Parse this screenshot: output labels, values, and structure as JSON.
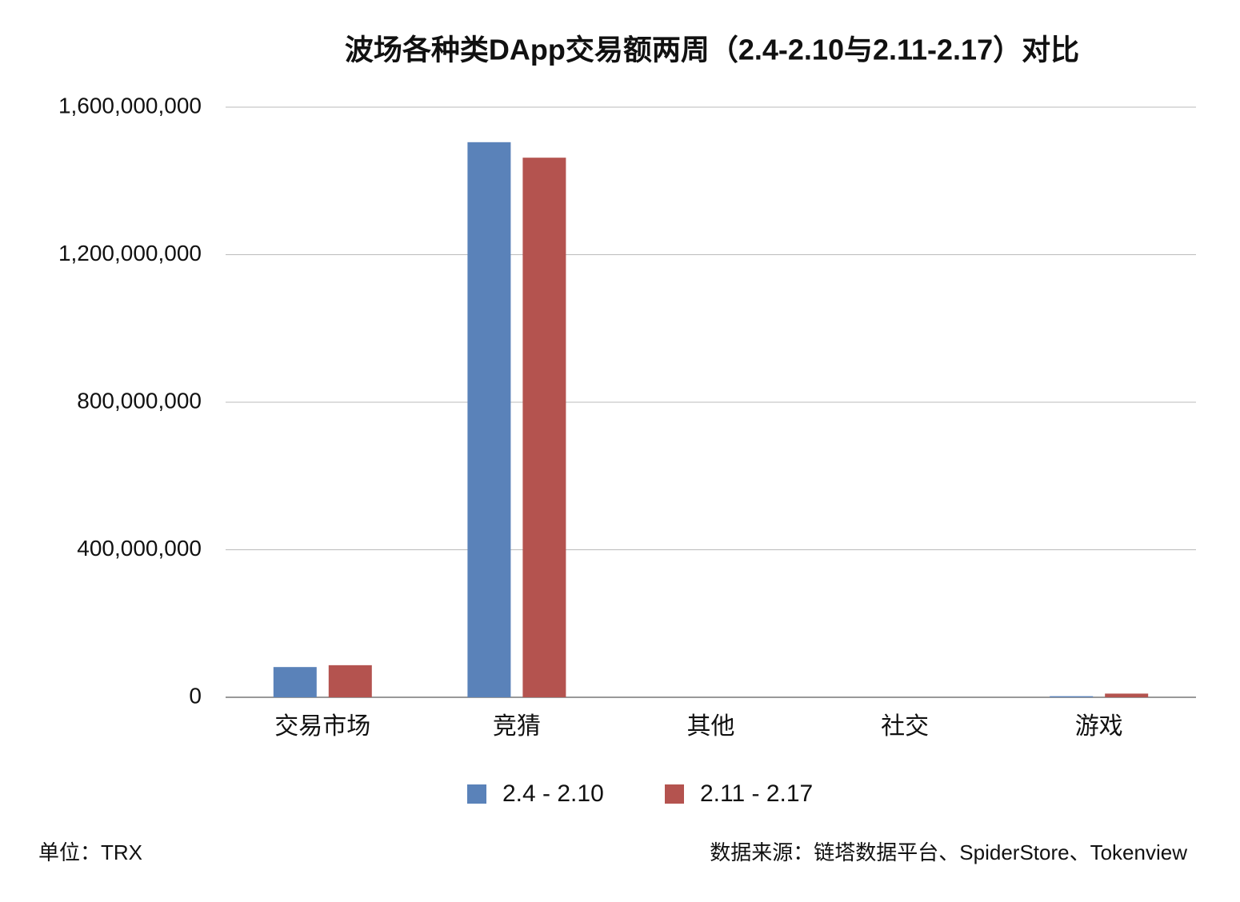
{
  "chart_data": {
    "type": "bar",
    "title": "波场各种类DApp交易额两周（2.4-2.10与2.11-2.17）对比",
    "unit_note": "单位：TRX",
    "source_note": "数据来源：链塔数据平台、SpiderStore、Tokenview",
    "categories": [
      "交易市场",
      "竞猜",
      "其他",
      "社交",
      "游戏"
    ],
    "series": [
      {
        "name": "2.4 - 2.10",
        "color": "#5a82b9",
        "values": [
          82000000,
          1505000000,
          0,
          0,
          3000000
        ]
      },
      {
        "name": "2.11 - 2.17",
        "color": "#b4534f",
        "values": [
          87000000,
          1463000000,
          0,
          0,
          10000000
        ]
      }
    ],
    "ylim": [
      0,
      1600000000
    ],
    "yticks": [
      0,
      {
        "value": 400000000,
        "label": "400,000,000"
      },
      {
        "value": 800000000,
        "label": "800,000,000"
      },
      {
        "value": 1200000000,
        "label": "1,200,000,000"
      },
      {
        "value": 1600000000,
        "label": "1,600,000,000"
      }
    ],
    "grid": true
  }
}
